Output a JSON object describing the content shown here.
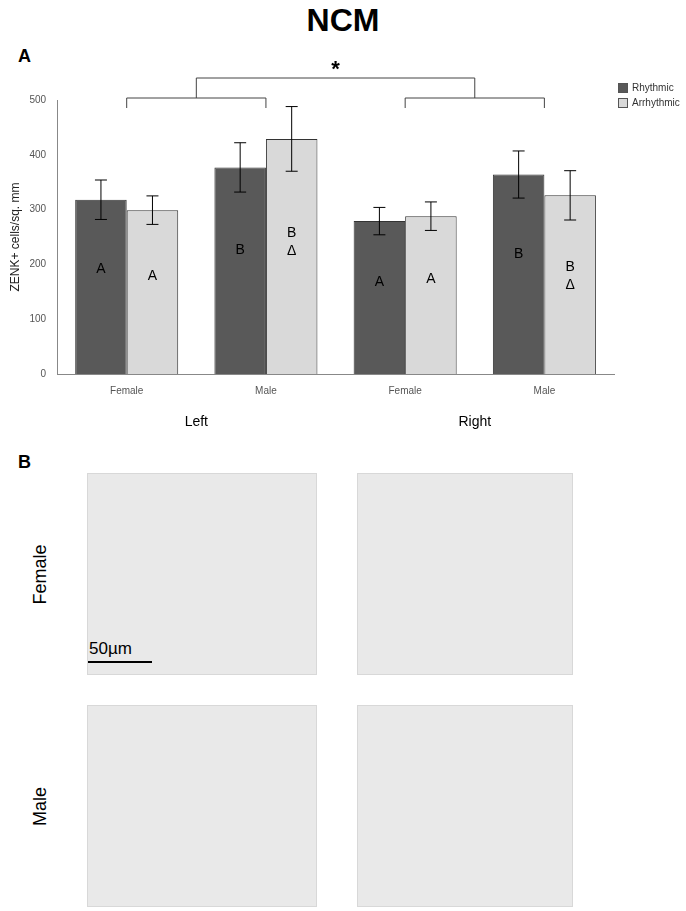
{
  "title": "NCM",
  "panel_labels": [
    "A",
    "B"
  ],
  "chart_data": {
    "type": "bar",
    "categories": [
      "Female",
      "Male",
      "Female",
      "Male"
    ],
    "groups": [
      "Left",
      "Right"
    ],
    "y_label": "ZENK+ cells/sq. mm",
    "ylim": [
      0,
      500
    ],
    "yticks": [
      0,
      100,
      200,
      300,
      400,
      500
    ],
    "grid": false,
    "legend": "top-right",
    "series": [
      {
        "name": "Rhythmic",
        "color": "#595959",
        "values": [
          318,
          377,
          279,
          364
        ],
        "errors": [
          36,
          45,
          25,
          43
        ],
        "letters": [
          [
            "A"
          ],
          [
            "B"
          ],
          [
            "A"
          ],
          [
            "B"
          ]
        ]
      },
      {
        "name": "Arrhythmic",
        "color": "#d9d9d9",
        "values": [
          299,
          429,
          288,
          326
        ],
        "errors": [
          26,
          59,
          26,
          45
        ],
        "letters": [
          [
            "A"
          ],
          [
            "B",
            "Δ"
          ],
          [
            "A"
          ],
          [
            "B",
            "Δ"
          ]
        ]
      }
    ],
    "significance": {
      "label": "*",
      "between": [
        "Left",
        "Right"
      ]
    }
  },
  "micrographs": {
    "rows": [
      "Female",
      "Male"
    ],
    "columns": 2,
    "scale_bar": "50µm"
  }
}
